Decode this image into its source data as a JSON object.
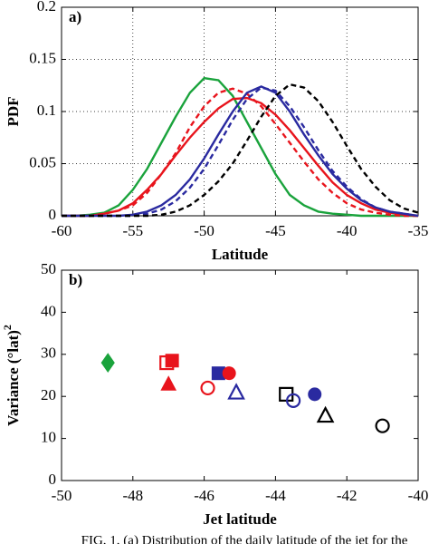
{
  "chart_data": [
    {
      "type": "line",
      "annotation": "a)",
      "xlabel": "Latitude",
      "ylabel": "PDF",
      "x": [
        -60,
        -59,
        -58,
        -57,
        -56,
        -55,
        -54,
        -53,
        -52,
        -51,
        -50,
        -49,
        -48,
        -47,
        -46,
        -45,
        -44,
        -43,
        -42,
        -41,
        -40,
        -39,
        -38,
        -37,
        -36,
        -35
      ],
      "xlim": [
        -60,
        -35
      ],
      "xticks": [
        -60,
        -55,
        -50,
        -45,
        -40,
        -35
      ],
      "ylim": [
        0,
        0.2
      ],
      "yticks": [
        0,
        0.05,
        0.1,
        0.15,
        0.2
      ],
      "grid": true,
      "series": [
        {
          "color": "#1aa33c",
          "line_style": "solid",
          "values": [
            0,
            0,
            0.001,
            0.003,
            0.01,
            0.025,
            0.045,
            0.07,
            0.095,
            0.118,
            0.132,
            0.13,
            0.115,
            0.09,
            0.065,
            0.04,
            0.02,
            0.01,
            0.004,
            0.002,
            0.001,
            0,
            0,
            0,
            0,
            0
          ]
        },
        {
          "color": "#e8141c",
          "line_style": "solid",
          "values": [
            0,
            0,
            0,
            0.002,
            0.005,
            0.012,
            0.025,
            0.04,
            0.058,
            0.075,
            0.09,
            0.103,
            0.112,
            0.113,
            0.108,
            0.097,
            0.082,
            0.065,
            0.048,
            0.032,
            0.02,
            0.012,
            0.006,
            0.003,
            0.001,
            0
          ]
        },
        {
          "color": "#e8141c",
          "line_style": "dashed",
          "values": [
            0,
            0,
            0,
            0.002,
            0.005,
            0.01,
            0.022,
            0.04,
            0.06,
            0.085,
            0.105,
            0.118,
            0.122,
            0.117,
            0.105,
            0.088,
            0.07,
            0.052,
            0.035,
            0.022,
            0.012,
            0.006,
            0.003,
            0.001,
            0,
            0
          ]
        },
        {
          "color": "#2a2aa0",
          "line_style": "solid",
          "values": [
            0,
            0,
            0,
            0,
            0,
            0.001,
            0.004,
            0.01,
            0.02,
            0.035,
            0.055,
            0.078,
            0.1,
            0.118,
            0.124,
            0.118,
            0.1,
            0.078,
            0.058,
            0.04,
            0.026,
            0.015,
            0.008,
            0.004,
            0.002,
            0
          ]
        },
        {
          "color": "#2a2aa0",
          "line_style": "dashed",
          "values": [
            0,
            0,
            0,
            0,
            0,
            0,
            0.002,
            0.006,
            0.014,
            0.027,
            0.045,
            0.068,
            0.092,
            0.112,
            0.123,
            0.12,
            0.105,
            0.085,
            0.063,
            0.043,
            0.028,
            0.016,
            0.008,
            0.004,
            0.002,
            0
          ]
        },
        {
          "color": "#000000",
          "line_style": "dashed",
          "values": [
            0,
            0,
            0,
            0,
            0,
            0,
            0,
            0.001,
            0.004,
            0.01,
            0.02,
            0.033,
            0.05,
            0.072,
            0.095,
            0.115,
            0.126,
            0.123,
            0.11,
            0.09,
            0.067,
            0.045,
            0.028,
            0.015,
            0.007,
            0.003
          ]
        }
      ]
    },
    {
      "type": "scatter",
      "annotation": "b)",
      "xlabel": "Jet latitude",
      "ylabel": "Variance (°lat)",
      "ylabel_superscript": "2",
      "xlim": [
        -50,
        -40
      ],
      "xticks": [
        -50,
        -48,
        -46,
        -44,
        -42,
        -40
      ],
      "ylim": [
        0,
        50
      ],
      "yticks": [
        0,
        10,
        20,
        30,
        40,
        50
      ],
      "grid": false,
      "series": [
        {
          "color": "#1aa33c",
          "marker": "diamond",
          "filled": true,
          "x": [
            -48.7
          ],
          "values": [
            28
          ]
        },
        {
          "color": "#e8141c",
          "marker": "square",
          "filled": false,
          "x": [
            -47.05
          ],
          "values": [
            28
          ]
        },
        {
          "color": "#e8141c",
          "marker": "square",
          "filled": true,
          "x": [
            -46.9
          ],
          "values": [
            28.5
          ]
        },
        {
          "color": "#e8141c",
          "marker": "triangle",
          "filled": true,
          "x": [
            -47.0
          ],
          "values": [
            23
          ]
        },
        {
          "color": "#2a2aa0",
          "marker": "square",
          "filled": true,
          "x": [
            -45.6
          ],
          "values": [
            25.5
          ]
        },
        {
          "color": "#e8141c",
          "marker": "circle",
          "filled": true,
          "x": [
            -45.3
          ],
          "values": [
            25.5
          ]
        },
        {
          "color": "#e8141c",
          "marker": "circle",
          "filled": false,
          "x": [
            -45.9
          ],
          "values": [
            22
          ]
        },
        {
          "color": "#2a2aa0",
          "marker": "triangle",
          "filled": false,
          "x": [
            -45.1
          ],
          "values": [
            21
          ]
        },
        {
          "color": "#000000",
          "marker": "square",
          "filled": false,
          "x": [
            -43.7
          ],
          "values": [
            20.5
          ]
        },
        {
          "color": "#2a2aa0",
          "marker": "circle",
          "filled": false,
          "x": [
            -43.5
          ],
          "values": [
            19
          ]
        },
        {
          "color": "#2a2aa0",
          "marker": "circle",
          "filled": true,
          "x": [
            -42.9
          ],
          "values": [
            20.5
          ]
        },
        {
          "color": "#000000",
          "marker": "triangle",
          "filled": false,
          "x": [
            -42.6
          ],
          "values": [
            15.5
          ]
        },
        {
          "color": "#000000",
          "marker": "circle",
          "filled": false,
          "x": [
            -41.0
          ],
          "values": [
            13
          ]
        }
      ]
    }
  ],
  "caption": "FIG. 1. (a) Distribution of the daily latitude of the jet for the"
}
